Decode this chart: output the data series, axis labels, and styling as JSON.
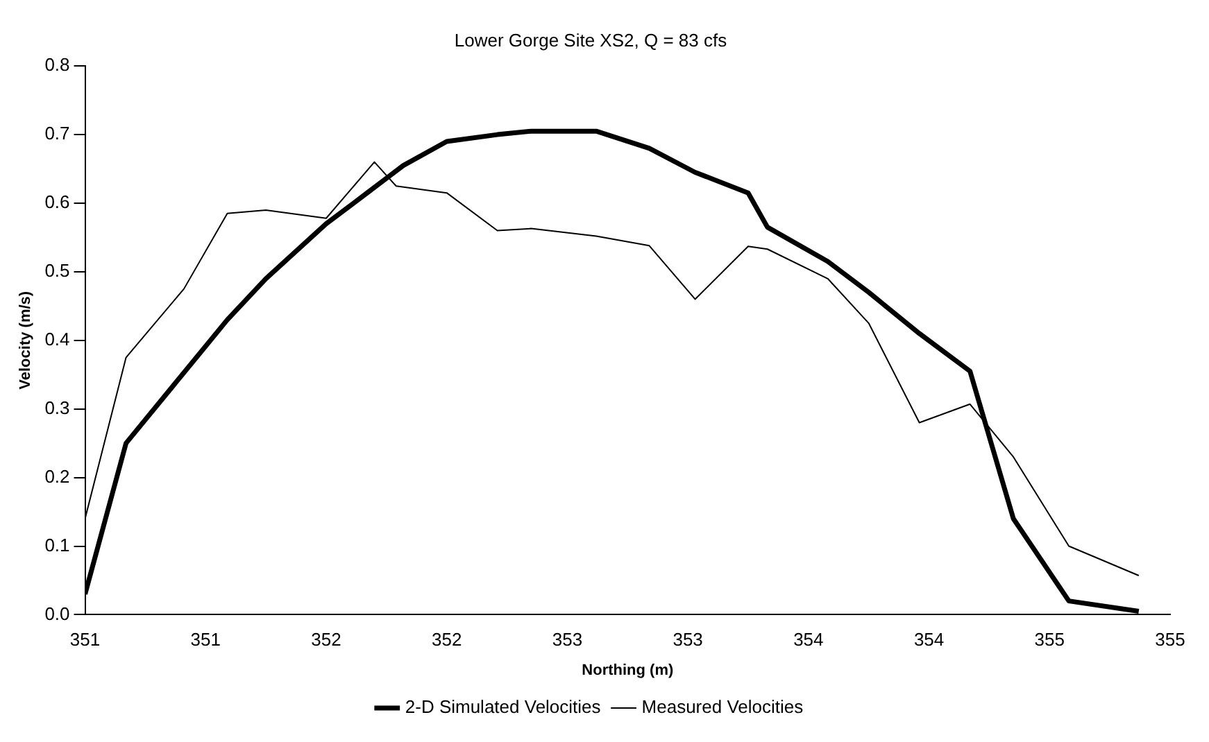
{
  "chart_data": {
    "type": "line",
    "title": "Lower Gorge Site XS2, Q = 83 cfs",
    "xlabel": "Northing (m)",
    "ylabel": "Velocity (m/s)",
    "xlim": [
      350.5,
      355
    ],
    "xticks": [
      {
        "value": 350.5,
        "label": "351"
      },
      {
        "value": 351,
        "label": "351"
      },
      {
        "value": 351.5,
        "label": "352"
      },
      {
        "value": 352,
        "label": "352"
      },
      {
        "value": 352.5,
        "label": "353"
      },
      {
        "value": 353,
        "label": "353"
      },
      {
        "value": 353.5,
        "label": "354"
      },
      {
        "value": 354,
        "label": "354"
      },
      {
        "value": 354.5,
        "label": "355"
      },
      {
        "value": 355,
        "label": "355"
      }
    ],
    "ylim": [
      0,
      0.8
    ],
    "yticks": [
      {
        "value": 0,
        "label": "0.0"
      },
      0.1,
      0.2,
      0.3,
      0.4,
      0.5,
      0.6,
      0.7,
      0.8
    ],
    "grid": false,
    "legend": "bottom",
    "marker": "none",
    "line_style": "solid",
    "series": [
      {
        "name": "2-D Simulated Velocities",
        "color": "#000000",
        "x": [
          350.5,
          350.67,
          351.09,
          351.25,
          351.5,
          351.67,
          351.82,
          352.0,
          352.21,
          352.35,
          352.62,
          352.84,
          353.03,
          353.25,
          353.33,
          353.58,
          353.75,
          353.96,
          354.17,
          354.35,
          354.58,
          354.87
        ],
        "values": [
          0.03,
          0.25,
          0.43,
          0.49,
          0.57,
          0.615,
          0.655,
          0.69,
          0.7,
          0.705,
          0.705,
          0.68,
          0.645,
          0.615,
          0.565,
          0.515,
          0.47,
          0.41,
          0.355,
          0.14,
          0.02,
          0.005
        ]
      },
      {
        "name": "Measured Velocities",
        "color": "#000000",
        "x": [
          350.5,
          350.67,
          350.91,
          351.09,
          351.25,
          351.5,
          351.7,
          351.79,
          352.0,
          352.21,
          352.35,
          352.62,
          352.84,
          353.03,
          353.25,
          353.33,
          353.58,
          353.75,
          353.96,
          354.17,
          354.35,
          354.58,
          354.87
        ],
        "values": [
          0.14,
          0.375,
          0.475,
          0.585,
          0.59,
          0.578,
          0.66,
          0.625,
          0.615,
          0.56,
          0.563,
          0.552,
          0.538,
          0.46,
          0.537,
          0.533,
          0.49,
          0.425,
          0.28,
          0.307,
          0.23,
          0.1,
          0.057
        ]
      }
    ]
  }
}
